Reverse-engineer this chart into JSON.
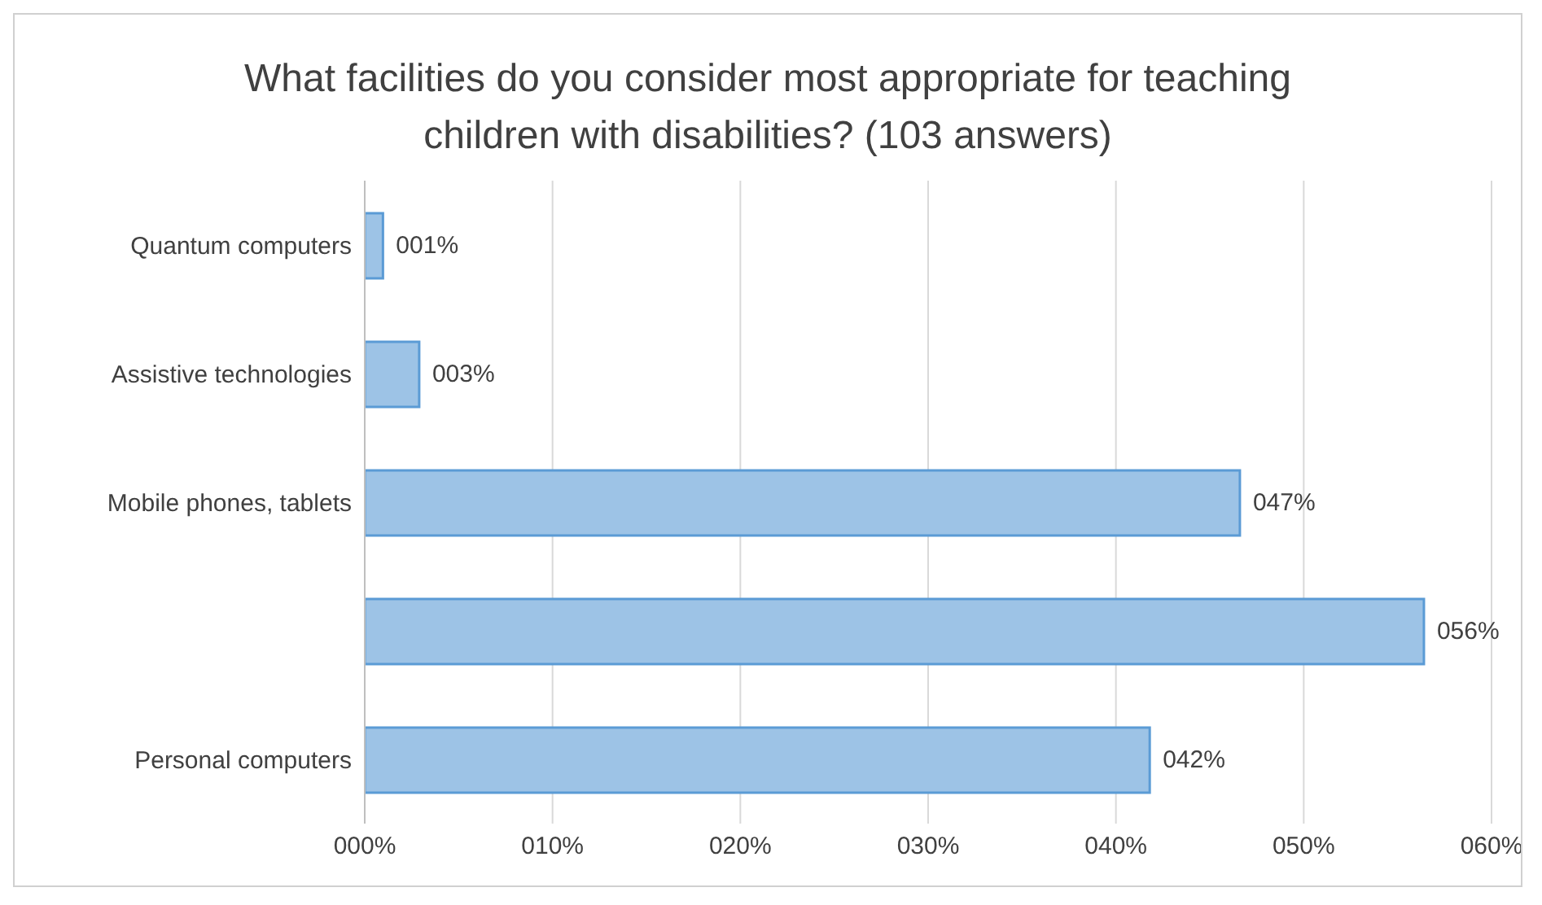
{
  "chart_data": {
    "type": "bar",
    "orientation": "horizontal",
    "title": "What facilities do you consider most appropriate for teaching children with disabilities? (103 answers)",
    "categories": [
      "Quantum computers",
      "Assistive technologies",
      "Mobile phones, tablets",
      null,
      "Personal computers"
    ],
    "values": [
      0.97,
      2.9,
      46.6,
      56.4,
      41.8
    ],
    "value_labels": [
      "001%",
      "003%",
      "047%",
      "056%",
      "042%"
    ],
    "color": "#9dc3e6",
    "xlim": [
      0,
      60
    ],
    "xticks": [
      {
        "value": 0,
        "label": "000%"
      },
      {
        "value": 10,
        "label": "010%"
      },
      {
        "value": 20,
        "label": "020%"
      },
      {
        "value": 30,
        "label": "030%"
      },
      {
        "value": 40,
        "label": "040%"
      },
      {
        "value": 50,
        "label": "050%"
      },
      {
        "value": 60,
        "label": "060%"
      }
    ],
    "grid": "x",
    "legend": false
  }
}
